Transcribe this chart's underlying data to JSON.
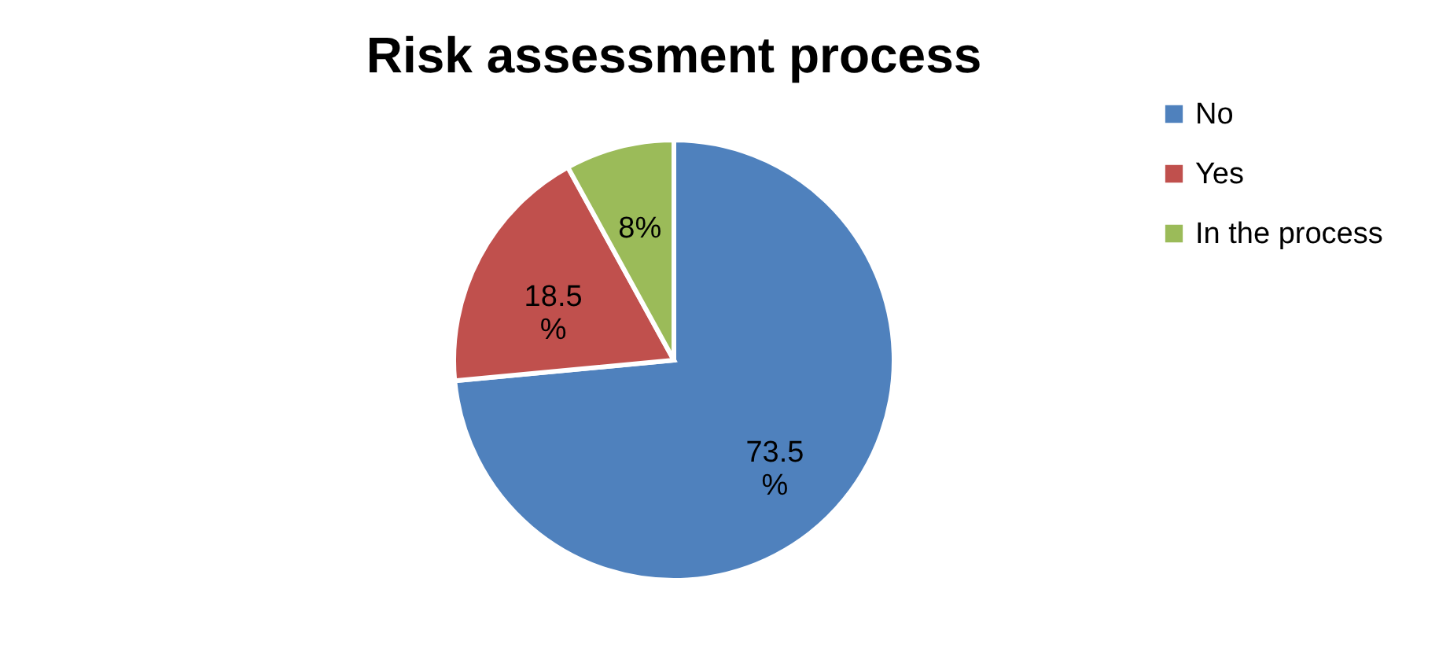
{
  "chart_data": {
    "type": "pie",
    "title": "Risk assessment process",
    "categories": [
      "No",
      "Yes",
      "In the process"
    ],
    "values": [
      73.5,
      18.5,
      8
    ],
    "colors": [
      "#4f81bd",
      "#c0504d",
      "#9bbb59"
    ],
    "value_labels": [
      "73.5 %",
      "18.5 %",
      "8%"
    ],
    "legend": "right"
  }
}
